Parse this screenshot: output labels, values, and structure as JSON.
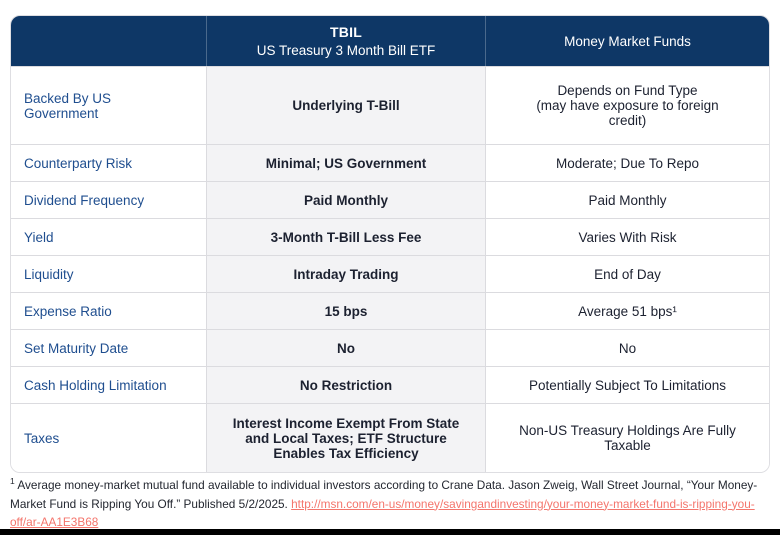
{
  "header": {
    "col1": "",
    "col2_line1": "TBIL",
    "col2_line2": "US Treasury 3 Month Bill ETF",
    "col3": "Money Market Funds"
  },
  "rows": [
    {
      "label": "Backed By US\nGovernment",
      "tbil": "Underlying T-Bill",
      "mmf": "Depends on Fund Type\n(may have exposure to foreign\ncredit)"
    },
    {
      "label": "Counterparty Risk",
      "tbil": "Minimal; US Government",
      "mmf": "Moderate; Due To Repo"
    },
    {
      "label": "Dividend Frequency",
      "tbil": "Paid Monthly",
      "mmf": "Paid Monthly"
    },
    {
      "label": "Yield",
      "tbil": "3-Month T-Bill Less Fee",
      "mmf": "Varies With Risk"
    },
    {
      "label": "Liquidity",
      "tbil": "Intraday Trading",
      "mmf": "End of Day"
    },
    {
      "label": "Expense Ratio",
      "tbil": "15 bps",
      "mmf": "Average 51 bps¹"
    },
    {
      "label": "Set Maturity Date",
      "tbil": "No",
      "mmf": "No"
    },
    {
      "label": "Cash Holding Limitation",
      "tbil": "No Restriction",
      "mmf": "Potentially Subject To Limitations"
    },
    {
      "label": "Taxes",
      "tbil": "Interest Income Exempt From State\nand Local Taxes; ETF Structure\nEnables Tax Efficiency",
      "mmf": "Non-US Treasury Holdings Are Fully\nTaxable"
    }
  ],
  "footnote": {
    "sup": "1",
    "text": " Average money-market mutual fund available to individual investors according to Crane Data. Jason Zweig, Wall Street Journal, “Your Money-Market Fund is Ripping You Off.” Published 5/2/2025. ",
    "link": "http://msn.com/en-us/money/savingandinvesting/your-money-market-fund-is-ripping-you-off/ar-AA1E3B68"
  },
  "colors": {
    "header_navy": "#0E3766",
    "label_blue": "#1F4E8F",
    "tbil_col_bg": "#F3F3F5",
    "link_red": "#F4756C"
  }
}
